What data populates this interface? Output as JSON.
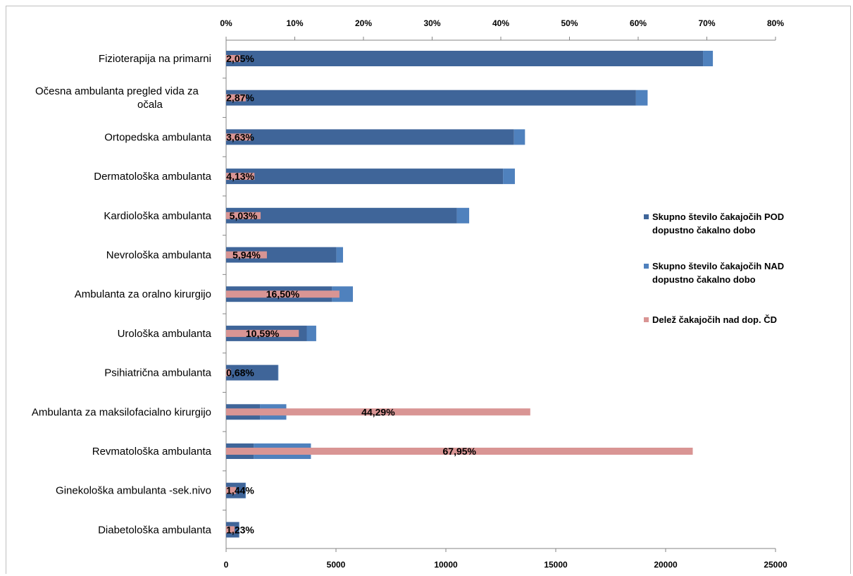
{
  "page": {
    "title": ""
  },
  "chart_data": {
    "type": "bar",
    "orientation": "horizontal",
    "stacked": true,
    "title": "",
    "xlabel": "",
    "ylabel": "",
    "categories": [
      "Fizioterapija na primarni",
      "Očesna ambulanta  pregled vida za očala",
      "Ortopedska ambulanta",
      "Dermatološka ambulanta",
      "Kardiološka ambulanta",
      "Nevrološka ambulanta",
      "Ambulanta za oralno kirurgijo",
      "Urološka ambulanta",
      "Psihiatrična ambulanta",
      "Ambulanta za maksilofacialno kirurgijo",
      "Revmatološka ambulanta",
      "Ginekološka ambulanta -sek.nivo",
      "Diabetološka ambulanta"
    ],
    "category_lines": [
      [
        "Fizioterapija na primarni"
      ],
      [
        "Očesna ambulanta  pregled vida za",
        "očala"
      ],
      [
        "Ortopedska ambulanta"
      ],
      [
        "Dermatološka ambulanta"
      ],
      [
        "Kardiološka ambulanta"
      ],
      [
        "Nevrološka ambulanta"
      ],
      [
        "Ambulanta za oralno kirurgijo"
      ],
      [
        "Urološka ambulanta"
      ],
      [
        "Psihiatrična ambulanta"
      ],
      [
        "Ambulanta za maksilofacialno kirurgijo"
      ],
      [
        "Revmatološka ambulanta"
      ],
      [
        "Ginekološka ambulanta -sek.nivo"
      ],
      [
        "Diabetološka ambulanta"
      ]
    ],
    "series": [
      {
        "name": "Skupno število čakajočih POD dopustno čakalno dobo",
        "name_lines": [
          "Skupno število čakajočih POD",
          "dopustno čakalno dobo"
        ],
        "axis": "bottom",
        "values": [
          21700,
          18650,
          13100,
          12600,
          10500,
          5020,
          4820,
          3670,
          2360,
          1540,
          1260,
          870,
          590
        ],
        "color": "#3F6599"
      },
      {
        "name": "Skupno število čakajočih NAD dopustno čakalno dobo",
        "name_lines": [
          "Skupno število čakajočih NAD",
          "dopustno čakalno dobo"
        ],
        "axis": "bottom",
        "values": [
          450,
          530,
          500,
          540,
          560,
          300,
          950,
          430,
          20,
          1200,
          2600,
          30,
          10
        ],
        "color": "#4F81BD"
      },
      {
        "name": "Delež čakajočih nad dop. ČD",
        "name_lines": [
          "Delež čakajočih nad dop. ČD"
        ],
        "axis": "top",
        "values": [
          2.05,
          2.87,
          3.63,
          4.13,
          5.03,
          5.94,
          16.5,
          10.59,
          0.68,
          44.29,
          67.95,
          1.44,
          1.23
        ],
        "color": "#D99594"
      }
    ],
    "data_labels": [
      "2,05%",
      "2,87%",
      "3,63%",
      "4,13%",
      "5,03%",
      "5,94%",
      "16,50%",
      "10,59%",
      "0,68%",
      "44,29%",
      "67,95%",
      "1,44%",
      "1,23%"
    ],
    "x_bottom": {
      "min": 0,
      "max": 25000,
      "ticks": [
        "0",
        "5000",
        "10000",
        "15000",
        "20000",
        "25000"
      ]
    },
    "x_top": {
      "min": 0,
      "max": 80,
      "ticks": [
        "0%",
        "10%",
        "20%",
        "30%",
        "40%",
        "50%",
        "60%",
        "70%",
        "80%"
      ]
    },
    "grid": false,
    "legend_position": "right"
  }
}
